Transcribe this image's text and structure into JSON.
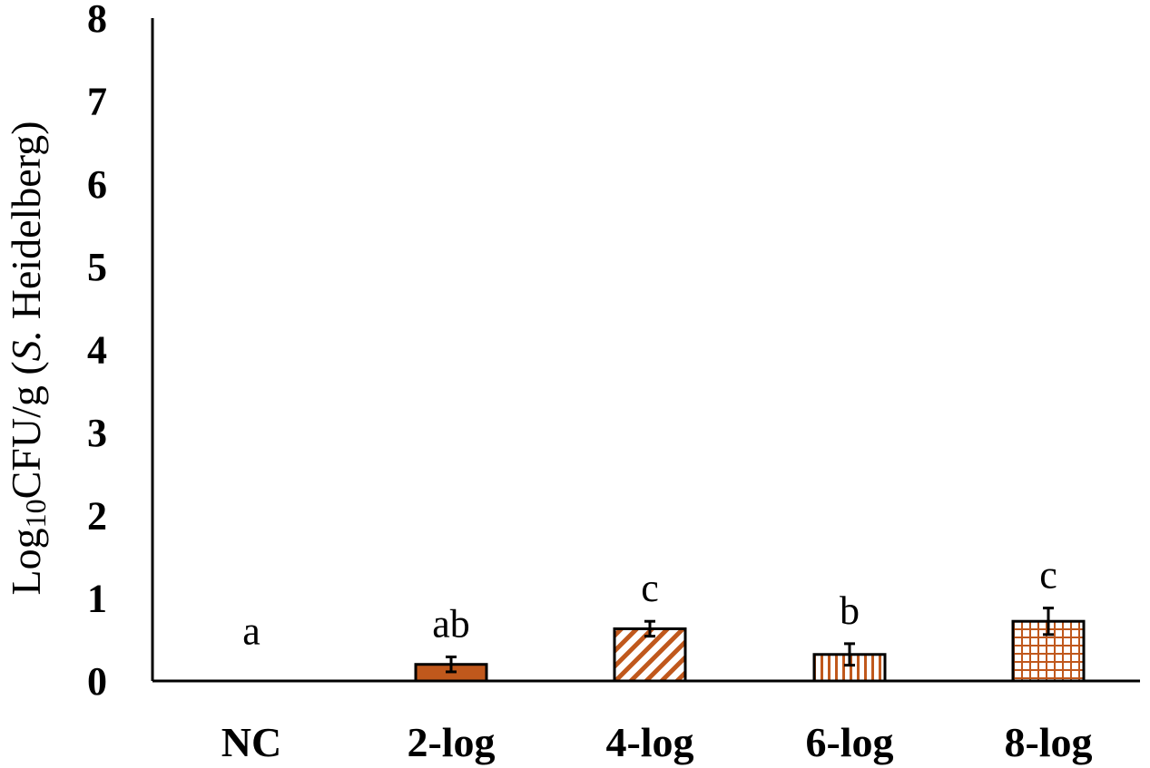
{
  "chart_data": {
    "type": "bar",
    "categories": [
      "NC",
      "2-log",
      "4-log",
      "6-log",
      "8-log"
    ],
    "values": [
      0,
      0.2,
      0.63,
      0.32,
      0.72
    ],
    "errors": [
      0,
      0.09,
      0.09,
      0.13,
      0.16
    ],
    "significance": [
      "a",
      "ab",
      "c",
      "b",
      "c"
    ],
    "patterns": [
      "none",
      "solid",
      "diagonal",
      "vertical",
      "grid"
    ],
    "title": "",
    "xlabel": "",
    "ylabel": {
      "prefix": "Log",
      "subscript": "10",
      "unit": "CFU/g (",
      "organism": "S.",
      "rest": " Heidelberg)"
    },
    "ylim": [
      0,
      8
    ],
    "yticks": [
      "0",
      "1",
      "2",
      "3",
      "4",
      "5",
      "6",
      "7",
      "8"
    ],
    "grid": false,
    "legend": "none",
    "bar_color": "#c0581c"
  }
}
